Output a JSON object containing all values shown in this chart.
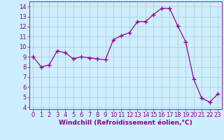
{
  "x": [
    0,
    1,
    2,
    3,
    4,
    5,
    6,
    7,
    8,
    9,
    10,
    11,
    12,
    13,
    14,
    15,
    16,
    17,
    18,
    19,
    20,
    21,
    22,
    23
  ],
  "y": [
    9.0,
    8.0,
    8.2,
    9.6,
    9.4,
    8.8,
    9.0,
    8.9,
    8.8,
    8.7,
    10.7,
    11.1,
    11.4,
    12.5,
    12.5,
    13.2,
    13.8,
    13.8,
    12.1,
    10.5,
    6.8,
    4.9,
    4.5,
    5.3
  ],
  "line_color": "#990099",
  "marker": "+",
  "marker_size": 4,
  "bg_color": "#cceeff",
  "grid_color": "#aacccc",
  "xlabel": "Windchill (Refroidissement éolien,°C)",
  "ylim": [
    3.8,
    14.5
  ],
  "xlim": [
    -0.5,
    23.5
  ],
  "yticks": [
    4,
    5,
    6,
    7,
    8,
    9,
    10,
    11,
    12,
    13,
    14
  ],
  "xticks": [
    0,
    1,
    2,
    3,
    4,
    5,
    6,
    7,
    8,
    9,
    10,
    11,
    12,
    13,
    14,
    15,
    16,
    17,
    18,
    19,
    20,
    21,
    22,
    23
  ],
  "xlabel_fontsize": 6.5,
  "tick_fontsize": 6.0,
  "label_color": "#880088",
  "spine_color": "#880088",
  "linewidth": 0.9,
  "marker_color": "#990099"
}
